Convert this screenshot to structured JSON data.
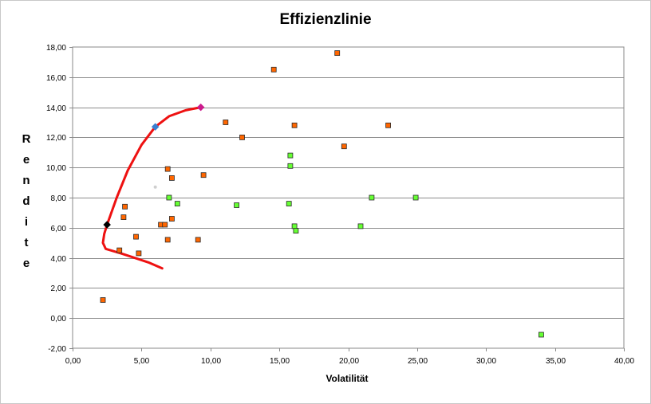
{
  "chart_data": {
    "type": "scatter",
    "title": "Effizienzlinie",
    "xlabel": "Volatilität",
    "ylabel": "Rendite",
    "xlim": [
      0,
      40
    ],
    "ylim": [
      -2,
      18
    ],
    "x_ticks": [
      "0,00",
      "5,00",
      "10,00",
      "15,00",
      "20,00",
      "25,00",
      "30,00",
      "35,00",
      "40,00"
    ],
    "y_ticks": [
      "-2,00",
      "0,00",
      "2,00",
      "4,00",
      "6,00",
      "8,00",
      "10,00",
      "12,00",
      "14,00",
      "16,00",
      "18,00"
    ],
    "grid": "horizontal",
    "legend": "none",
    "series": [
      {
        "marker": "square",
        "color": "#ff6600",
        "points": [
          [
            2.2,
            1.2
          ],
          [
            3.4,
            4.5
          ],
          [
            3.7,
            6.7
          ],
          [
            3.8,
            7.4
          ],
          [
            4.6,
            5.4
          ],
          [
            4.8,
            4.3
          ],
          [
            6.4,
            6.2
          ],
          [
            6.7,
            6.2
          ],
          [
            6.9,
            9.9
          ],
          [
            6.9,
            5.2
          ],
          [
            7.2,
            9.3
          ],
          [
            7.2,
            6.6
          ],
          [
            9.1,
            5.2
          ],
          [
            9.5,
            9.5
          ],
          [
            11.1,
            13.0
          ],
          [
            12.3,
            12.0
          ],
          [
            14.6,
            16.5
          ],
          [
            16.1,
            12.8
          ],
          [
            19.2,
            17.6
          ],
          [
            19.7,
            11.4
          ],
          [
            22.9,
            12.8
          ]
        ]
      },
      {
        "marker": "square",
        "color": "#66ff33",
        "points": [
          [
            7.0,
            8.0
          ],
          [
            7.6,
            7.6
          ],
          [
            11.9,
            7.5
          ],
          [
            15.7,
            7.6
          ],
          [
            15.8,
            10.1
          ],
          [
            15.8,
            10.8
          ],
          [
            16.1,
            6.1
          ],
          [
            16.2,
            5.8
          ],
          [
            20.9,
            6.1
          ],
          [
            21.7,
            8.0
          ],
          [
            24.9,
            8.0
          ],
          [
            34.0,
            -1.1
          ]
        ]
      },
      {
        "marker": "diamond",
        "points": [
          [
            2.5,
            6.2,
            "#000000"
          ],
          [
            6.0,
            12.7,
            "#3a7fd0"
          ],
          [
            9.3,
            14.0,
            "#cc1a8c"
          ]
        ]
      },
      {
        "marker": "dot",
        "color": "#cfcfcf",
        "points": [
          [
            6.0,
            8.7
          ]
        ]
      },
      {
        "type": "line",
        "color": "#ee1111",
        "points": [
          [
            6.5,
            3.3
          ],
          [
            5.5,
            3.7
          ],
          [
            4.5,
            4.0
          ],
          [
            3.5,
            4.3
          ],
          [
            2.4,
            4.6
          ],
          [
            2.2,
            5.0
          ],
          [
            2.3,
            5.6
          ],
          [
            2.5,
            6.2
          ],
          [
            3.2,
            8.0
          ],
          [
            4.0,
            9.8
          ],
          [
            5.0,
            11.5
          ],
          [
            6.0,
            12.7
          ],
          [
            7.0,
            13.4
          ],
          [
            8.2,
            13.8
          ],
          [
            9.3,
            14.0
          ]
        ]
      }
    ]
  }
}
